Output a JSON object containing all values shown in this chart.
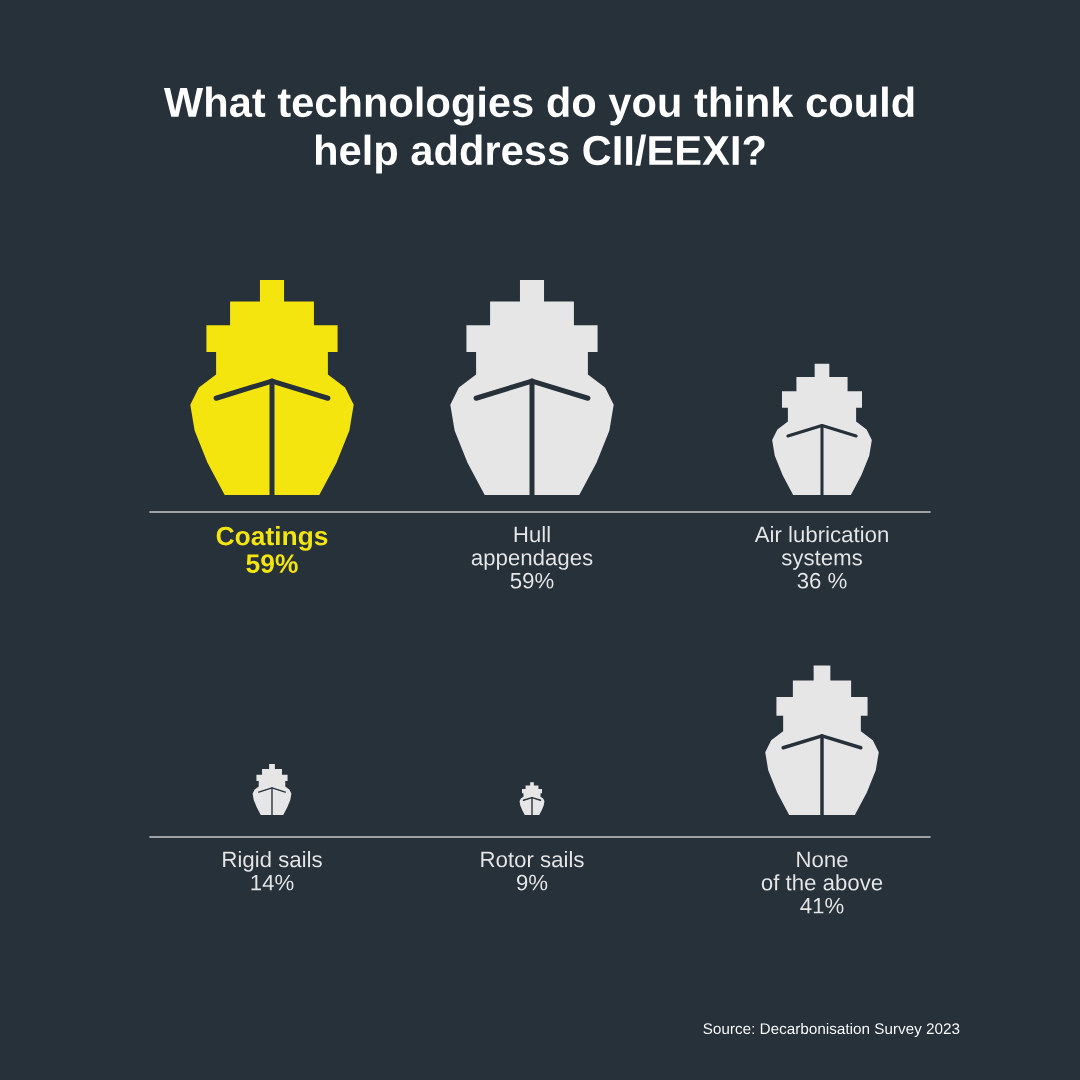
{
  "chart_data": {
    "type": "other",
    "title": "What technologies do you think could\nhelp address CII/EEXI?",
    "categories": [
      "Coatings",
      "Hull\nappendages",
      "Air lubrication\nsystems",
      "Rigid sails",
      "Rotor sails",
      "None\nof the above"
    ],
    "values": [
      59,
      59,
      36,
      14,
      9,
      41
    ],
    "value_labels": [
      "59%",
      "59%",
      "36 %",
      "14%",
      "9%",
      "41%"
    ],
    "colors": [
      "#f5e50e",
      "#e6e6e6",
      "#e6e6e6",
      "#e6e6e6",
      "#e6e6e6",
      "#e6e6e6"
    ],
    "annotations": [
      "Source: Decarbonisation Survey 2023"
    ]
  }
}
